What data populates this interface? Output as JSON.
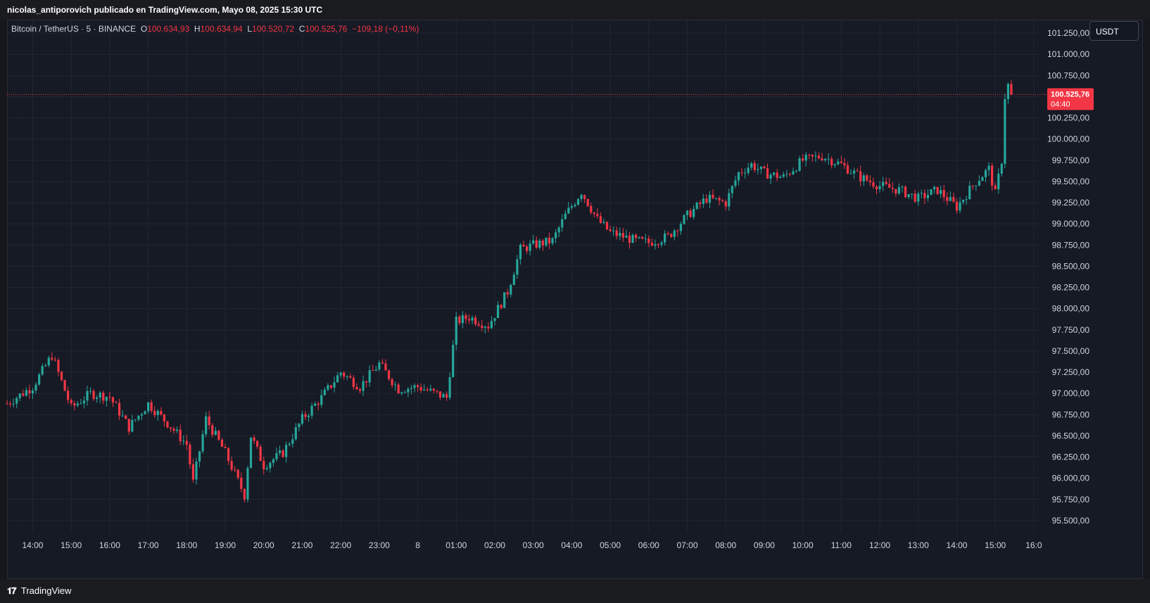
{
  "header": {
    "published_text": "nicolas_antiporovich publicado en TradingView.com, Mayo 08, 2025 15:30 UTC"
  },
  "legend": {
    "symbol": "Bitcoin / TetherUS · 5 · BINANCE",
    "open_label": "O",
    "open": "100.634,93",
    "high_label": "H",
    "high": "100.634,94",
    "low_label": "L",
    "low": "100.520,72",
    "close_label": "C",
    "close": "100.525,76",
    "change": "−109,18 (−0,11%)"
  },
  "currency_button": "USDT",
  "footer": {
    "brand": "TradingView",
    "logo_glyph": "𝟏𝟕"
  },
  "colors": {
    "up": "#26a69a",
    "down": "#f23645",
    "background": "#161a25",
    "grid": "#232632",
    "text": "#d1d4dc"
  },
  "chart_data": {
    "type": "candlestick",
    "symbol": "BTCUSDT",
    "interval": "5",
    "ylim": [
      95350,
      101400
    ],
    "y_ticks": [
      95500,
      95750,
      96000,
      96250,
      96500,
      96750,
      97000,
      97250,
      97500,
      97750,
      98000,
      98250,
      98500,
      98750,
      99000,
      99250,
      99500,
      99750,
      100000,
      100250,
      100500,
      100750,
      101000,
      101250
    ],
    "y_tick_labels": [
      "95.500,00",
      "95.750,00",
      "96.000,00",
      "96.250,00",
      "96.500,00",
      "96.750,00",
      "97.000,00",
      "97.250,00",
      "97.500,00",
      "97.750,00",
      "98.000,00",
      "98.250,00",
      "98.500,00",
      "98.750,00",
      "99.000,00",
      "99.250,00",
      "99.500,00",
      "99.750,00",
      "100.000,00",
      "100.250,00",
      "100.500,00",
      "100.750,00",
      "101.000,00",
      "101.250,00"
    ],
    "x_ticks": [
      "14:00",
      "15:00",
      "16:00",
      "17:00",
      "18:00",
      "19:00",
      "20:00",
      "21:00",
      "22:00",
      "23:00",
      "8",
      "01:00",
      "02:00",
      "03:00",
      "04:00",
      "05:00",
      "06:00",
      "07:00",
      "08:00",
      "09:00",
      "10:00",
      "11:00",
      "12:00",
      "13:00",
      "14:00",
      "15:00",
      "16:0"
    ],
    "candle_interval_minutes": 5,
    "last_price": 100525.76,
    "last_price_label": "100.525,76",
    "countdown": "04:40",
    "close_path_hourly": [
      {
        "t": "13:20",
        "close": 96880
      },
      {
        "t": "14:00",
        "close": 97080
      },
      {
        "t": "14:30",
        "close": 97450
      },
      {
        "t": "15:00",
        "close": 96830
      },
      {
        "t": "15:30",
        "close": 97000
      },
      {
        "t": "16:00",
        "close": 96960
      },
      {
        "t": "16:30",
        "close": 96600
      },
      {
        "t": "17:00",
        "close": 96880
      },
      {
        "t": "17:30",
        "close": 96650
      },
      {
        "t": "18:00",
        "close": 96400
      },
      {
        "t": "18:10",
        "close": 95950
      },
      {
        "t": "18:30",
        "close": 96700
      },
      {
        "t": "19:00",
        "close": 96300
      },
      {
        "t": "19:30",
        "close": 95800
      },
      {
        "t": "19:40",
        "close": 96500
      },
      {
        "t": "20:00",
        "close": 96150
      },
      {
        "t": "20:30",
        "close": 96300
      },
      {
        "t": "21:00",
        "close": 96700
      },
      {
        "t": "21:30",
        "close": 96950
      },
      {
        "t": "22:00",
        "close": 97250
      },
      {
        "t": "22:30",
        "close": 97080
      },
      {
        "t": "23:00",
        "close": 97350
      },
      {
        "t": "23:30",
        "close": 97050
      },
      {
        "t": "00:00",
        "close": 97080
      },
      {
        "t": "00:45",
        "close": 96950
      },
      {
        "t": "01:00",
        "close": 97850
      },
      {
        "t": "01:20",
        "close": 97900
      },
      {
        "t": "01:50",
        "close": 97800
      },
      {
        "t": "02:20",
        "close": 98200
      },
      {
        "t": "02:40",
        "close": 98700
      },
      {
        "t": "03:00",
        "close": 98750
      },
      {
        "t": "03:30",
        "close": 98800
      },
      {
        "t": "03:50",
        "close": 99100
      },
      {
        "t": "04:15",
        "close": 99380
      },
      {
        "t": "04:40",
        "close": 99050
      },
      {
        "t": "05:00",
        "close": 98900
      },
      {
        "t": "05:40",
        "close": 98800
      },
      {
        "t": "06:00",
        "close": 98780
      },
      {
        "t": "06:30",
        "close": 98850
      },
      {
        "t": "07:00",
        "close": 99100
      },
      {
        "t": "07:30",
        "close": 99300
      },
      {
        "t": "08:00",
        "close": 99250
      },
      {
        "t": "08:20",
        "close": 99600
      },
      {
        "t": "08:40",
        "close": 99700
      },
      {
        "t": "09:00",
        "close": 99600
      },
      {
        "t": "09:30",
        "close": 99550
      },
      {
        "t": "10:00",
        "close": 99750
      },
      {
        "t": "10:30",
        "close": 99800
      },
      {
        "t": "11:00",
        "close": 99700
      },
      {
        "t": "11:30",
        "close": 99550
      },
      {
        "t": "12:00",
        "close": 99450
      },
      {
        "t": "12:30",
        "close": 99400
      },
      {
        "t": "13:00",
        "close": 99300
      },
      {
        "t": "13:30",
        "close": 99400
      },
      {
        "t": "14:00",
        "close": 99200
      },
      {
        "t": "14:10",
        "close": 99300
      },
      {
        "t": "14:30",
        "close": 99500
      },
      {
        "t": "14:50",
        "close": 99650
      },
      {
        "t": "15:00",
        "close": 99350
      },
      {
        "t": "15:10",
        "close": 99750
      },
      {
        "t": "15:15",
        "close": 100500
      },
      {
        "t": "15:20",
        "close": 100634.93
      },
      {
        "t": "15:25",
        "close": 100525.76
      }
    ]
  }
}
